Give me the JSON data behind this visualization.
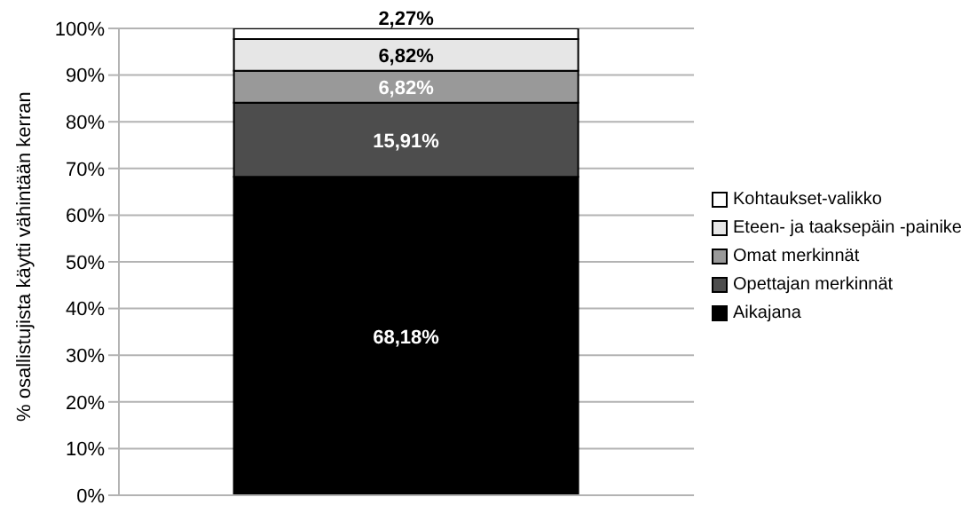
{
  "chart_data": {
    "type": "bar",
    "stacked": true,
    "ylabel": "% osallistujista käytti vähintään kerran",
    "categories": [
      null
    ],
    "series": [
      {
        "name": "Aikajana",
        "color": "#000000",
        "values": [
          68.18
        ],
        "value_labels": [
          "68,18%"
        ]
      },
      {
        "name": "Opettajan merkinnät",
        "color": "#4d4d4d",
        "values": [
          15.91
        ],
        "value_labels": [
          "15,91%"
        ]
      },
      {
        "name": "Omat merkinnät",
        "color": "#999999",
        "values": [
          6.82
        ],
        "value_labels": [
          "6,82%"
        ]
      },
      {
        "name": "Eteen- ja taaksepäin -painike",
        "color": "#e6e6e6",
        "values": [
          6.82
        ],
        "value_labels": [
          "6,82%"
        ]
      },
      {
        "name": "Kohtaukset-valikko",
        "color": "#ffffff",
        "values": [
          2.27
        ],
        "value_labels": [
          "2,27%"
        ]
      }
    ],
    "ylim": [
      0,
      100
    ],
    "yticks": [
      {
        "value": 0,
        "label": "0%"
      },
      {
        "value": 10,
        "label": "10%"
      },
      {
        "value": 20,
        "label": "20%"
      },
      {
        "value": 30,
        "label": "30%"
      },
      {
        "value": 40,
        "label": "40%"
      },
      {
        "value": 50,
        "label": "50%"
      },
      {
        "value": 60,
        "label": "60%"
      },
      {
        "value": 70,
        "label": "70%"
      },
      {
        "value": 80,
        "label": "80%"
      },
      {
        "value": 90,
        "label": "90%"
      },
      {
        "value": 100,
        "label": "100%"
      }
    ],
    "grid": "y",
    "legend": "right"
  }
}
